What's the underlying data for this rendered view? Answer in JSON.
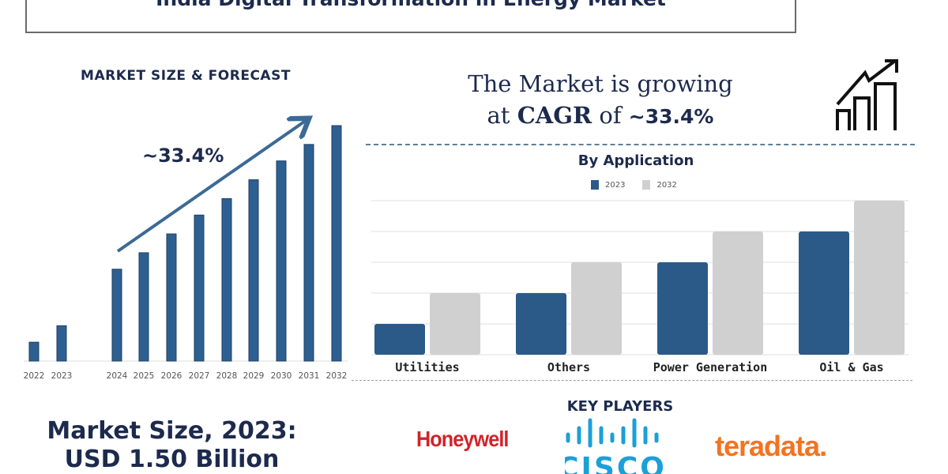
{
  "title": "India Digital Transformation in Energy Market",
  "forecast": {
    "heading": "MARKET SIZE & FORECAST",
    "cagr_label": "~33.4%"
  },
  "market_size": {
    "line1": "Market Size, 2023:",
    "line2": "USD 1.50 Billion"
  },
  "growth": {
    "line1": "The Market is growing",
    "at": "at",
    "cagr": "CAGR",
    "of": "of",
    "value": "~33.4%"
  },
  "key_players": {
    "heading": "KEY PLAYERS",
    "logos": [
      "Honeywell",
      "CISCO",
      "teradata."
    ]
  },
  "colors": {
    "navy": "#1c2a4d",
    "bar_blue": "#2e5f91",
    "gray": "#cfcfcf",
    "honeywell": "#d2232a",
    "cisco": "#1ba0d7",
    "teradata": "#f37321"
  },
  "chart_data": [
    {
      "type": "bar",
      "title": "MARKET SIZE & FORECAST",
      "categories": [
        "2022",
        "2023",
        "2024",
        "2025",
        "2026",
        "2027",
        "2028",
        "2029",
        "2030",
        "2031",
        "2032"
      ],
      "values": [
        8,
        15,
        39,
        46,
        54,
        62,
        69,
        77,
        85,
        92,
        100
      ],
      "ylim": [
        0,
        100
      ],
      "grid": false,
      "annotation": "~33.4%"
    },
    {
      "type": "bar",
      "title": "By Application",
      "categories": [
        "Utilities",
        "Others",
        "Power Generation",
        "Oil & Gas"
      ],
      "series": [
        {
          "name": "2023",
          "values": [
            1,
            2,
            3,
            4
          ],
          "color": "#2b5a88"
        },
        {
          "name": "2032",
          "values": [
            2,
            3,
            4,
            5
          ],
          "color": "#d0d0d0"
        }
      ],
      "ylim": [
        0,
        5
      ],
      "grid": true,
      "legend": "top-center"
    }
  ]
}
